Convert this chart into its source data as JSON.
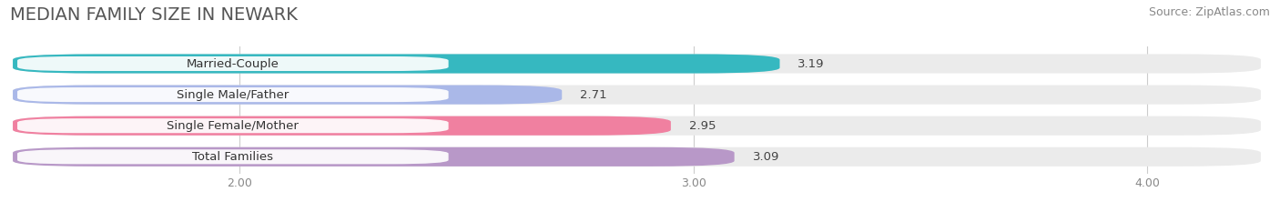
{
  "title": "MEDIAN FAMILY SIZE IN NEWARK",
  "source": "Source: ZipAtlas.com",
  "categories": [
    "Married-Couple",
    "Single Male/Father",
    "Single Female/Mother",
    "Total Families"
  ],
  "values": [
    3.19,
    2.71,
    2.95,
    3.09
  ],
  "bar_colors": [
    "#36b8c0",
    "#aab8e8",
    "#f080a0",
    "#b898c8"
  ],
  "xlim_min": 1.5,
  "xlim_max": 4.25,
  "xstart": 0.0,
  "xticks": [
    2.0,
    3.0,
    4.0
  ],
  "xtick_labels": [
    "2.00",
    "3.00",
    "4.00"
  ],
  "background_color": "#ffffff",
  "bar_bg_color": "#ebebeb",
  "bar_height": 0.62,
  "bar_gap": 0.38,
  "title_fontsize": 14,
  "source_fontsize": 9,
  "bar_label_fontsize": 9.5,
  "value_fontsize": 9.5,
  "tick_fontsize": 9
}
